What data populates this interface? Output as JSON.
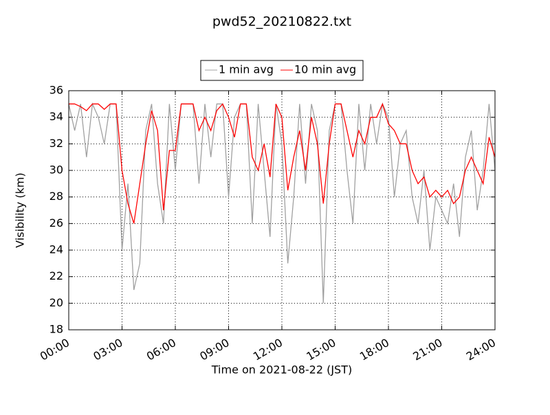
{
  "chart_data": {
    "type": "line",
    "title": "pwd52_20210822.txt",
    "x_label": "Time on 2021-08-22 (JST)",
    "y_label": "Visibility (km)",
    "x": [
      0,
      20,
      40,
      60,
      80,
      100,
      120,
      140,
      160,
      180,
      200,
      220,
      240,
      260,
      280,
      300,
      320,
      340,
      360,
      380,
      400,
      420,
      440,
      460,
      480,
      500,
      520,
      540,
      560,
      580,
      600,
      620,
      640,
      660,
      680,
      700,
      720,
      740,
      760,
      780,
      800,
      820,
      840,
      860,
      880,
      900,
      920,
      940,
      960,
      980,
      1000,
      1020,
      1040,
      1060,
      1080,
      1100,
      1120,
      1140,
      1160,
      1180,
      1200,
      1220,
      1240,
      1260,
      1280,
      1300,
      1320,
      1340,
      1360,
      1380,
      1400,
      1420,
      1440
    ],
    "series": [
      {
        "name": "1 min avg",
        "color": "#a0a0a0",
        "values": [
          35,
          33,
          35,
          31,
          35,
          34,
          32,
          35,
          35,
          24,
          29,
          21,
          23,
          33,
          35,
          29,
          26,
          35,
          30,
          35,
          35,
          35,
          29,
          35,
          31,
          35,
          35,
          28,
          34,
          35,
          35,
          26,
          35,
          30,
          25,
          35,
          32,
          23,
          28,
          35,
          29,
          35,
          33,
          20,
          33,
          35,
          35,
          30,
          26,
          35,
          30,
          35,
          32,
          35,
          34,
          28,
          32,
          33,
          28,
          26,
          30,
          24,
          28,
          27,
          26,
          29,
          25,
          31,
          33,
          27,
          30,
          35,
          30
        ]
      },
      {
        "name": "10 min avg",
        "color": "#ff0000",
        "values": [
          35,
          35,
          34.8,
          34.5,
          35,
          35,
          34.6,
          35,
          35,
          30,
          27.5,
          26,
          29,
          32,
          34.5,
          33,
          27,
          31.5,
          31.5,
          35,
          35,
          35,
          33,
          34,
          33,
          34.5,
          35,
          34,
          32.5,
          35,
          35,
          31,
          30,
          32,
          29.5,
          35,
          34,
          28.5,
          31,
          33,
          30,
          34,
          32,
          27.5,
          32,
          35,
          35,
          33,
          31,
          33,
          32,
          34,
          34,
          35,
          33.5,
          33,
          32,
          32,
          30,
          29,
          29.5,
          28,
          28.5,
          28,
          28.5,
          27.5,
          28,
          30,
          31,
          30,
          29,
          32.5,
          31
        ]
      }
    ],
    "xlim": [
      0,
      1440
    ],
    "xticks": [
      {
        "value": 0,
        "label": "00:00"
      },
      {
        "value": 180,
        "label": "03:00"
      },
      {
        "value": 360,
        "label": "06:00"
      },
      {
        "value": 540,
        "label": "09:00"
      },
      {
        "value": 720,
        "label": "12:00"
      },
      {
        "value": 900,
        "label": "15:00"
      },
      {
        "value": 1080,
        "label": "18:00"
      },
      {
        "value": 1260,
        "label": "21:00"
      },
      {
        "value": 1440,
        "label": "24:00"
      }
    ],
    "ylim": [
      18,
      36
    ],
    "yticks": [
      18,
      20,
      22,
      24,
      26,
      28,
      30,
      32,
      34,
      36
    ],
    "grid": true,
    "legend": "top"
  }
}
